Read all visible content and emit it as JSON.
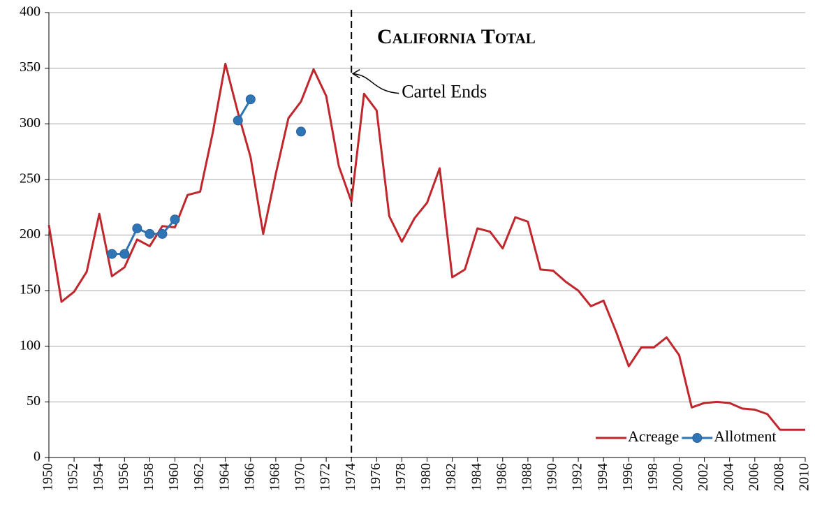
{
  "chart_data": {
    "type": "line",
    "title": "California Total",
    "x": [
      1950,
      1951,
      1952,
      1953,
      1954,
      1955,
      1956,
      1957,
      1958,
      1959,
      1960,
      1961,
      1962,
      1963,
      1964,
      1965,
      1966,
      1967,
      1968,
      1969,
      1970,
      1971,
      1972,
      1973,
      1974,
      1975,
      1976,
      1977,
      1978,
      1979,
      1980,
      1981,
      1982,
      1983,
      1984,
      1985,
      1986,
      1987,
      1988,
      1989,
      1990,
      1991,
      1992,
      1993,
      1994,
      1995,
      1996,
      1997,
      1998,
      1999,
      2000,
      2001,
      2002,
      2003,
      2004,
      2005,
      2006,
      2007,
      2008,
      2009,
      2010
    ],
    "series": [
      {
        "name": "Acreage",
        "color": "#c0272d",
        "marker": false,
        "values": [
          209,
          140,
          149,
          167,
          219,
          163,
          171,
          196,
          190,
          208,
          207,
          236,
          239,
          292,
          354,
          310,
          270,
          201,
          255,
          305,
          320,
          349,
          325,
          262,
          230,
          327,
          312,
          217,
          194,
          215,
          229,
          260,
          162,
          169,
          206,
          203,
          188,
          216,
          212,
          169,
          168,
          158,
          150,
          136,
          141,
          113,
          82,
          99,
          99,
          108,
          92,
          45,
          49,
          50,
          49,
          44,
          43,
          39,
          25,
          25,
          25
        ]
      },
      {
        "name": "Allotment",
        "color": "#2e75b6",
        "marker": true,
        "values": [
          null,
          null,
          null,
          null,
          null,
          183,
          183,
          206,
          201,
          201,
          214,
          null,
          null,
          null,
          null,
          303,
          322,
          null,
          null,
          null,
          293,
          null,
          null,
          null,
          null,
          null,
          null,
          null,
          null,
          null,
          null,
          null,
          null,
          null,
          null,
          null,
          null,
          null,
          null,
          null,
          null,
          null,
          null,
          null,
          null,
          null,
          null,
          null,
          null,
          null,
          null,
          null,
          null,
          null,
          null,
          null,
          null,
          null,
          null,
          null,
          null
        ]
      }
    ],
    "xlim": [
      1950,
      2010
    ],
    "xticks": [
      1950,
      1952,
      1954,
      1956,
      1958,
      1960,
      1962,
      1964,
      1966,
      1968,
      1970,
      1972,
      1974,
      1976,
      1978,
      1980,
      1982,
      1984,
      1986,
      1988,
      1990,
      1992,
      1994,
      1996,
      1998,
      2000,
      2002,
      2004,
      2006,
      2008,
      2010
    ],
    "ylim": [
      0,
      400
    ],
    "yticks": [
      0,
      50,
      100,
      150,
      200,
      250,
      300,
      350,
      400
    ],
    "grid": true,
    "legend": "lower right",
    "vline": 1974,
    "annotations": [
      {
        "text": "Cartel Ends",
        "x": 1974,
        "y": 345
      }
    ]
  }
}
